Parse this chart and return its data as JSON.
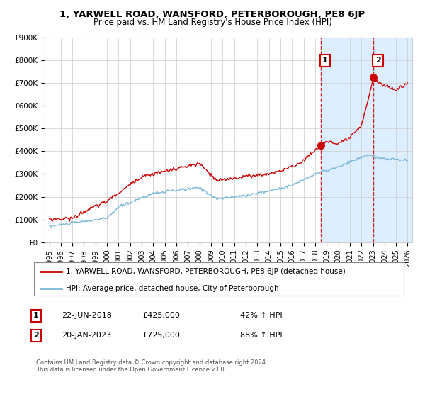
{
  "title": "1, YARWELL ROAD, WANSFORD, PETERBOROUGH, PE8 6JP",
  "subtitle": "Price paid vs. HM Land Registry's House Price Index (HPI)",
  "legend_line1": "1, YARWELL ROAD, WANSFORD, PETERBOROUGH, PE8 6JP (detached house)",
  "legend_line2": "HPI: Average price, detached house, City of Peterborough",
  "annotation1_date": "22-JUN-2018",
  "annotation1_price": "£425,000",
  "annotation1_hpi": "42% ↑ HPI",
  "annotation2_date": "20-JAN-2023",
  "annotation2_price": "£725,000",
  "annotation2_hpi": "88% ↑ HPI",
  "footer": "Contains HM Land Registry data © Crown copyright and database right 2024.\nThis data is licensed under the Open Government Licence v3.0.",
  "hpi_line_color": "#7ab8d9",
  "price_line_color": "#cc0000",
  "marker_color": "#cc0000",
  "vline_color": "#cc0000",
  "shade_color": "#ddeeff",
  "ylim": [
    0,
    900000
  ],
  "yticks": [
    0,
    100000,
    200000,
    300000,
    400000,
    500000,
    600000,
    700000,
    800000,
    900000
  ],
  "ytick_labels": [
    "£0",
    "£100K",
    "£200K",
    "£300K",
    "£400K",
    "£500K",
    "£600K",
    "£700K",
    "£800K",
    "£900K"
  ],
  "year_start": 1995,
  "year_end": 2026,
  "sale1_year": 2018.47,
  "sale1_price": 425000,
  "sale2_year": 2023.05,
  "sale2_price": 725000,
  "xlim_left": 1994.6,
  "xlim_right": 2026.4,
  "bg_color": "#ffffff",
  "grid_color": "#cccccc"
}
